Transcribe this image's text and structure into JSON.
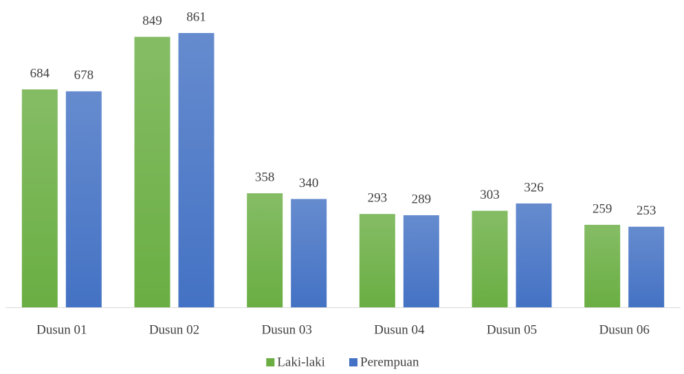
{
  "chart_data": {
    "type": "bar",
    "categories": [
      "Dusun 01",
      "Dusun 02",
      "Dusun 03",
      "Dusun 04",
      "Dusun 05",
      "Dusun 06"
    ],
    "series": [
      {
        "name": "Laki-laki",
        "color": "#6aae43",
        "values": [
          684,
          849,
          358,
          293,
          303,
          259
        ]
      },
      {
        "name": "Perempuan",
        "color": "#4472c4",
        "values": [
          678,
          861,
          340,
          289,
          326,
          253
        ]
      }
    ],
    "legend": "bottom"
  }
}
